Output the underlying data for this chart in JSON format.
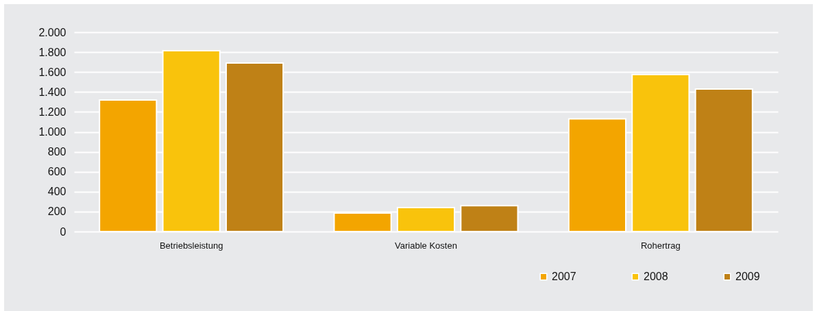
{
  "chart_data": {
    "type": "bar",
    "categories": [
      "Betriebsleistung",
      "Variable Kosten",
      "Rohertrag"
    ],
    "series": [
      {
        "name": "2007",
        "color": "#f3a500",
        "values": [
          1320,
          185,
          1130
        ]
      },
      {
        "name": "2008",
        "color": "#f9c30c",
        "values": [
          1815,
          240,
          1575
        ]
      },
      {
        "name": "2009",
        "color": "#bf8116",
        "values": [
          1690,
          260,
          1430
        ]
      }
    ],
    "ylim": [
      0,
      2000
    ],
    "yticks": [
      0,
      200,
      400,
      600,
      800,
      {
        "value": 1000,
        "label": "1.000"
      },
      {
        "value": 1200,
        "label": "1.200"
      },
      {
        "value": 1400,
        "label": "1.400"
      },
      {
        "value": 1600,
        "label": "1.600"
      },
      {
        "value": 1800,
        "label": "1.800"
      },
      {
        "value": 2000,
        "label": "2.000"
      }
    ],
    "grid": "y",
    "legend": "bottom right"
  }
}
